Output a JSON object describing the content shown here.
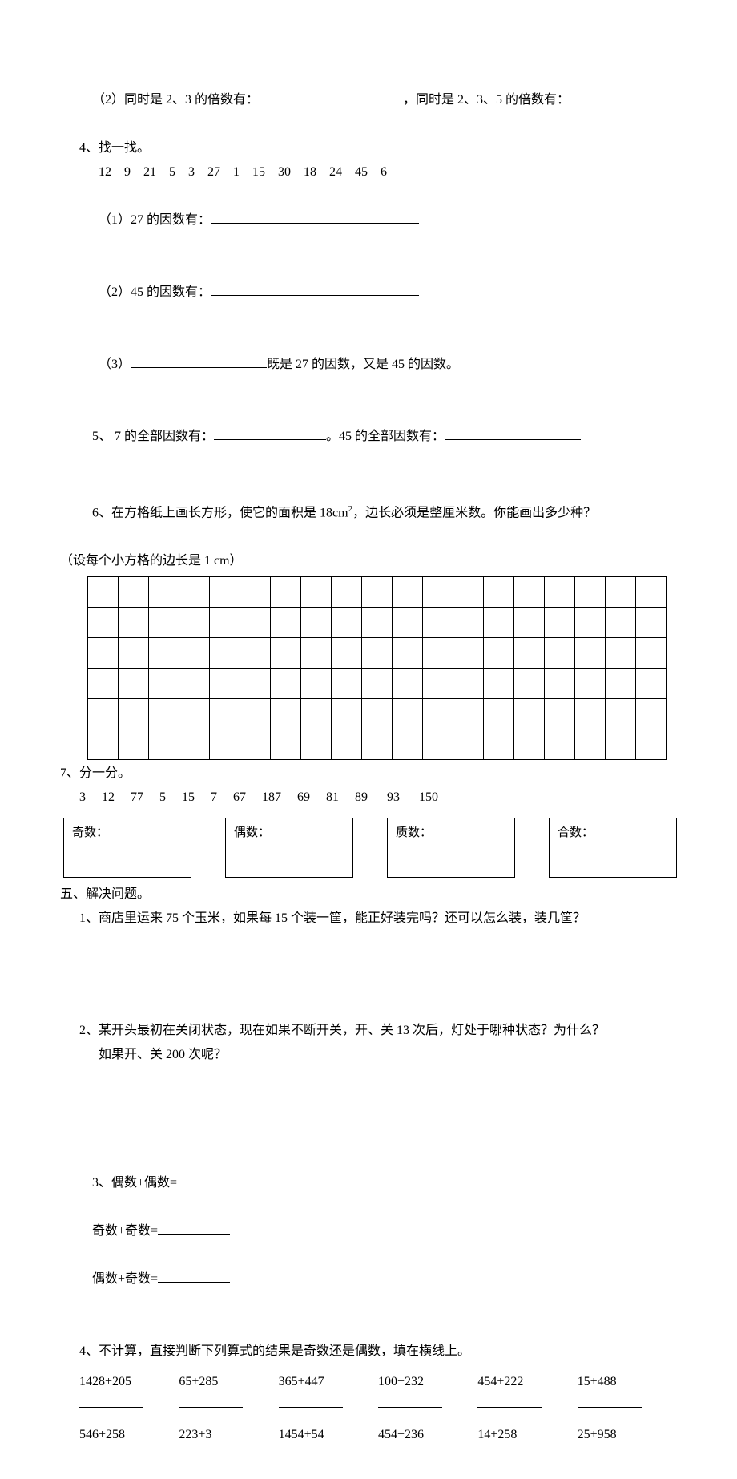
{
  "q_sub2": {
    "prefix": "（2）同时是 2、3 的倍数有：",
    "mid": "，同时是 2、3、5 的倍数有："
  },
  "q4": {
    "title": "4、找一找。",
    "numbers": "12    9    21    5    3    27    1    15    30    18    24    45    6",
    "sub1": "（1）27 的因数有：",
    "sub2": "（2）45 的因数有：",
    "sub3a": "（3）",
    "sub3b": "既是 27 的因数，又是 45 的因数。"
  },
  "q5": {
    "a": "5、 7 的全部因数有：",
    "b": "。45 的全部因数有："
  },
  "q6": {
    "line1a": "6、在方格纸上画长方形，使它的面积是 18cm",
    "line1sup": "2",
    "line1b": "，边长必须是整厘米数。你能画出多少种？",
    "line2": "（设每个小方格的边长是 1 cm）",
    "grid": {
      "rows": 6,
      "cols": 19
    }
  },
  "q7": {
    "title": "7、分一分。",
    "numbers": "3     12     77     5     15     7     67     187     69     81     89      93      150",
    "boxes": [
      "奇数：",
      "偶数：",
      "质数：",
      "合数："
    ]
  },
  "section5": {
    "title": "五、解决问题。",
    "q1": "1、商店里运来 75 个玉米，如果每 15 个装一筐，能正好装完吗？还可以怎么装，装几筐？",
    "q2a": "2、某开头最初在关闭状态，现在如果不断开关，开、关 13 次后，灯处于哪种状态？为什么？",
    "q2b": "如果开、关 200 次呢？",
    "q3": {
      "a": "3、偶数+偶数=",
      "b": "奇数+奇数=",
      "c": "偶数+奇数="
    },
    "q4": {
      "title": "4、不计算，直接判断下列算式的结果是奇数还是偶数，填在横线上。",
      "row1": [
        "1428+205",
        "65+285",
        "365+447",
        "100+232",
        "454+222",
        "15+488"
      ],
      "row2": [
        "546+258",
        "223+3",
        "1454+54",
        "454+236",
        "14+258",
        "25+958"
      ]
    }
  }
}
